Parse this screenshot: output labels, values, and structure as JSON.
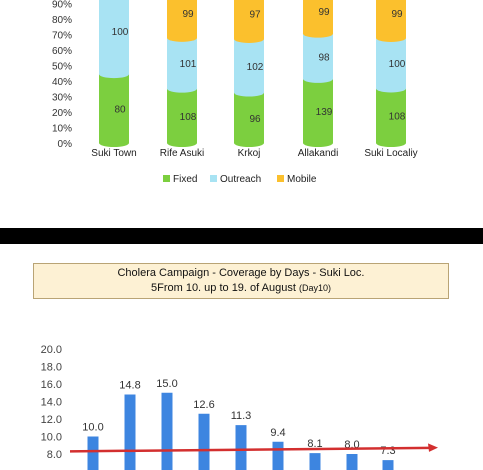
{
  "chart_data": [
    {
      "type": "bar",
      "stacked": "percent",
      "categories": [
        "Suki Town",
        "Rife Asuki",
        "Krkoj",
        "Allakandi",
        "Suki Localiy"
      ],
      "series": [
        {
          "name": "Fixed",
          "color": "#7ccf3f",
          "values": [
            80,
            108,
            96,
            139,
            108
          ]
        },
        {
          "name": "Outreach",
          "color": "#a8e3f3",
          "values": [
            100,
            101,
            102,
            98,
            100
          ]
        },
        {
          "name": "Mobile",
          "color": "#fbc02d",
          "values": [
            null,
            99,
            97,
            99,
            99
          ]
        }
      ],
      "yticks": [
        "0%",
        "10%",
        "20%",
        "30%",
        "40%",
        "50%",
        "60%",
        "70%",
        "80%",
        "90%"
      ],
      "ylim": [
        0,
        100
      ],
      "legend": "bottom"
    },
    {
      "type": "bar",
      "title_line1": "Cholera Campaign - Coverage by Days  - Suki Loc.",
      "title_line2": "5From 10. up to 19. of August",
      "title_suffix": "(Day10)",
      "values": [
        10.0,
        14.8,
        15.0,
        12.6,
        11.3,
        9.4,
        8.1,
        8.0,
        7.3
      ],
      "labels": [
        "10.0",
        "14.8",
        "15.0",
        "12.6",
        "11.3",
        "9.4",
        "8.1",
        "8.0",
        "7.3"
      ],
      "yticks": [
        "8.0",
        "10.0",
        "12.0",
        "14.0",
        "16.0",
        "18.0",
        "20.0"
      ],
      "ylim": [
        7,
        20
      ],
      "bar_color": "#3d85e0",
      "line_color": "#d32f2f",
      "reference_line": {
        "start": 8.3,
        "end": 8.7
      },
      "grid": false
    }
  ]
}
